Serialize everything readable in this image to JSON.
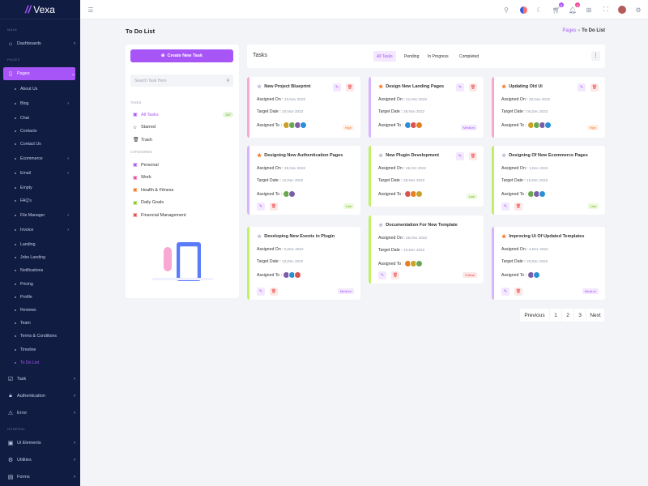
{
  "brand": "Vexa",
  "sidebar": {
    "sections": {
      "main": "MAIN",
      "pages": "PAGES",
      "general": "GENERAL"
    },
    "dashboards": "Dashboards",
    "pages": "Pages",
    "sub": [
      {
        "label": "About Us"
      },
      {
        "label": "Blog",
        "chev": true
      },
      {
        "label": "Chat"
      },
      {
        "label": "Contacts"
      },
      {
        "label": "Contact Us"
      },
      {
        "label": "Ecommerce",
        "chev": true
      },
      {
        "label": "Email",
        "chev": true
      },
      {
        "label": "Empty"
      },
      {
        "label": "FAQ's"
      },
      {
        "label": "File Manager",
        "chev": true
      },
      {
        "label": "Invoice",
        "chev": true
      },
      {
        "label": "Landing"
      },
      {
        "label": "Jobs Landing"
      },
      {
        "label": "Notifications"
      },
      {
        "label": "Pricing"
      },
      {
        "label": "Profile"
      },
      {
        "label": "Reviews"
      },
      {
        "label": "Team"
      },
      {
        "label": "Terms & Conditions"
      },
      {
        "label": "Timeline"
      },
      {
        "label": "To Do List",
        "active": true
      }
    ],
    "bottom": [
      {
        "label": "Task",
        "icon": "task-icon",
        "g": "☑"
      },
      {
        "label": "Authentication",
        "icon": "lock-icon",
        "g": "🔒︎"
      },
      {
        "label": "Error",
        "icon": "warning-icon",
        "g": "⚠"
      }
    ],
    "general": [
      {
        "label": "Ui Elements",
        "icon": "ui-elements-icon",
        "g": "▣"
      },
      {
        "label": "Utilities",
        "icon": "utilities-icon",
        "g": "⚙"
      },
      {
        "label": "Forms",
        "icon": "forms-icon",
        "g": "▤"
      }
    ]
  },
  "header": {
    "cart_count": "5",
    "notif_count": "5",
    "accent": "#a855f7",
    "notif_color": "#ec4899"
  },
  "page": {
    "title": "To Do List",
    "breadcrumb": [
      "Pages",
      "To Do List"
    ]
  },
  "left": {
    "create": "Create New Task",
    "search_placeholder": "Search Task Here",
    "tasks_heading": "TASKS",
    "tasks": [
      {
        "label": "All Tasks",
        "count": "167",
        "active": true,
        "g": "▣"
      },
      {
        "label": "Starred",
        "g": "☆"
      },
      {
        "label": "Trash",
        "g": "🗑︎"
      }
    ],
    "categories_heading": "CATEGORIES",
    "categories": [
      {
        "label": "Personal",
        "color": "#a855f7"
      },
      {
        "label": "Work",
        "color": "#ec4899"
      },
      {
        "label": "Health & Fitness",
        "color": "#f97316"
      },
      {
        "label": "Daily Goals",
        "color": "#84cc16"
      },
      {
        "label": "Financial Management",
        "color": "#ef4444"
      }
    ]
  },
  "tasks": {
    "heading": "Tasks",
    "tabs": [
      "All Tasks",
      "Pending",
      "In Progress",
      "Completed"
    ],
    "labels": {
      "assigned_on": "Assigned On :",
      "target": "Target Date :",
      "assigned_to": "Assigned To :"
    },
    "cards": [
      {
        "title": "New Project Blueprint",
        "starred": false,
        "on": "13,Nov 2022",
        "target": "20,Nov 2022",
        "avatars": 4,
        "priority": "High",
        "color": "#f9a8d4"
      },
      {
        "title": "Designing New Authentication Pages",
        "starred": true,
        "on": "26,Nov 2022",
        "target": "12,Dec 2022",
        "avatars": 2,
        "priority": "Low",
        "color": "#d8b4fe"
      },
      {
        "title": "Developing New Events in Plugin",
        "starred": false,
        "on": "5,Dec 2022",
        "target": "10,Dec 2022",
        "avatars": 3,
        "priority": "Medium",
        "color": "#bef264"
      },
      {
        "title": "Design New Landing Pages",
        "starred": true,
        "on": "21,Nov 2022",
        "target": "28,Nov 2022",
        "avatars": 3,
        "priority": "Medium",
        "color": "#d8b4fe"
      },
      {
        "title": "New Plugin Development",
        "starred": false,
        "on": "28,Oct 2022",
        "target": "28,Nov 2022",
        "avatars": 3,
        "priority": "Low",
        "color": "#bef264"
      },
      {
        "title": "Documentation For New Template",
        "starred": false,
        "on": "25,Nov 2022",
        "target": "10,Dec 2022",
        "avatars": 3,
        "priority": "Critical",
        "color": "#bef264"
      },
      {
        "title": "Updating Old Ui",
        "starred": true,
        "on": "30,Nov 2022",
        "target": "05,Dec 2022",
        "avatars": 4,
        "priority": "High",
        "color": "#f9a8d4"
      },
      {
        "title": "Designing Of New Ecommerce Pages",
        "starred": false,
        "on": "1,Dec 2022",
        "target": "15,Dec 2022",
        "avatars": 3,
        "priority": "Low",
        "color": "#bef264"
      },
      {
        "title": "Improving Ui Of Updated Templates",
        "starred": true,
        "on": "4,Dec 2022",
        "target": "20,Dec 2022",
        "avatars": 2,
        "priority": "Medium",
        "color": "#d8b4fe"
      }
    ]
  },
  "pagination": {
    "prev": "Previous",
    "pages": [
      "1",
      "2",
      "3"
    ],
    "next": "Next"
  },
  "priority_colors": {
    "High": [
      "#fff1e6",
      "#f97316"
    ],
    "Low": [
      "#ecfadc",
      "#65a30d"
    ],
    "Medium": [
      "#f3e8ff",
      "#a855f7"
    ],
    "Critical": [
      "#fde8e8",
      "#ef4444"
    ]
  }
}
